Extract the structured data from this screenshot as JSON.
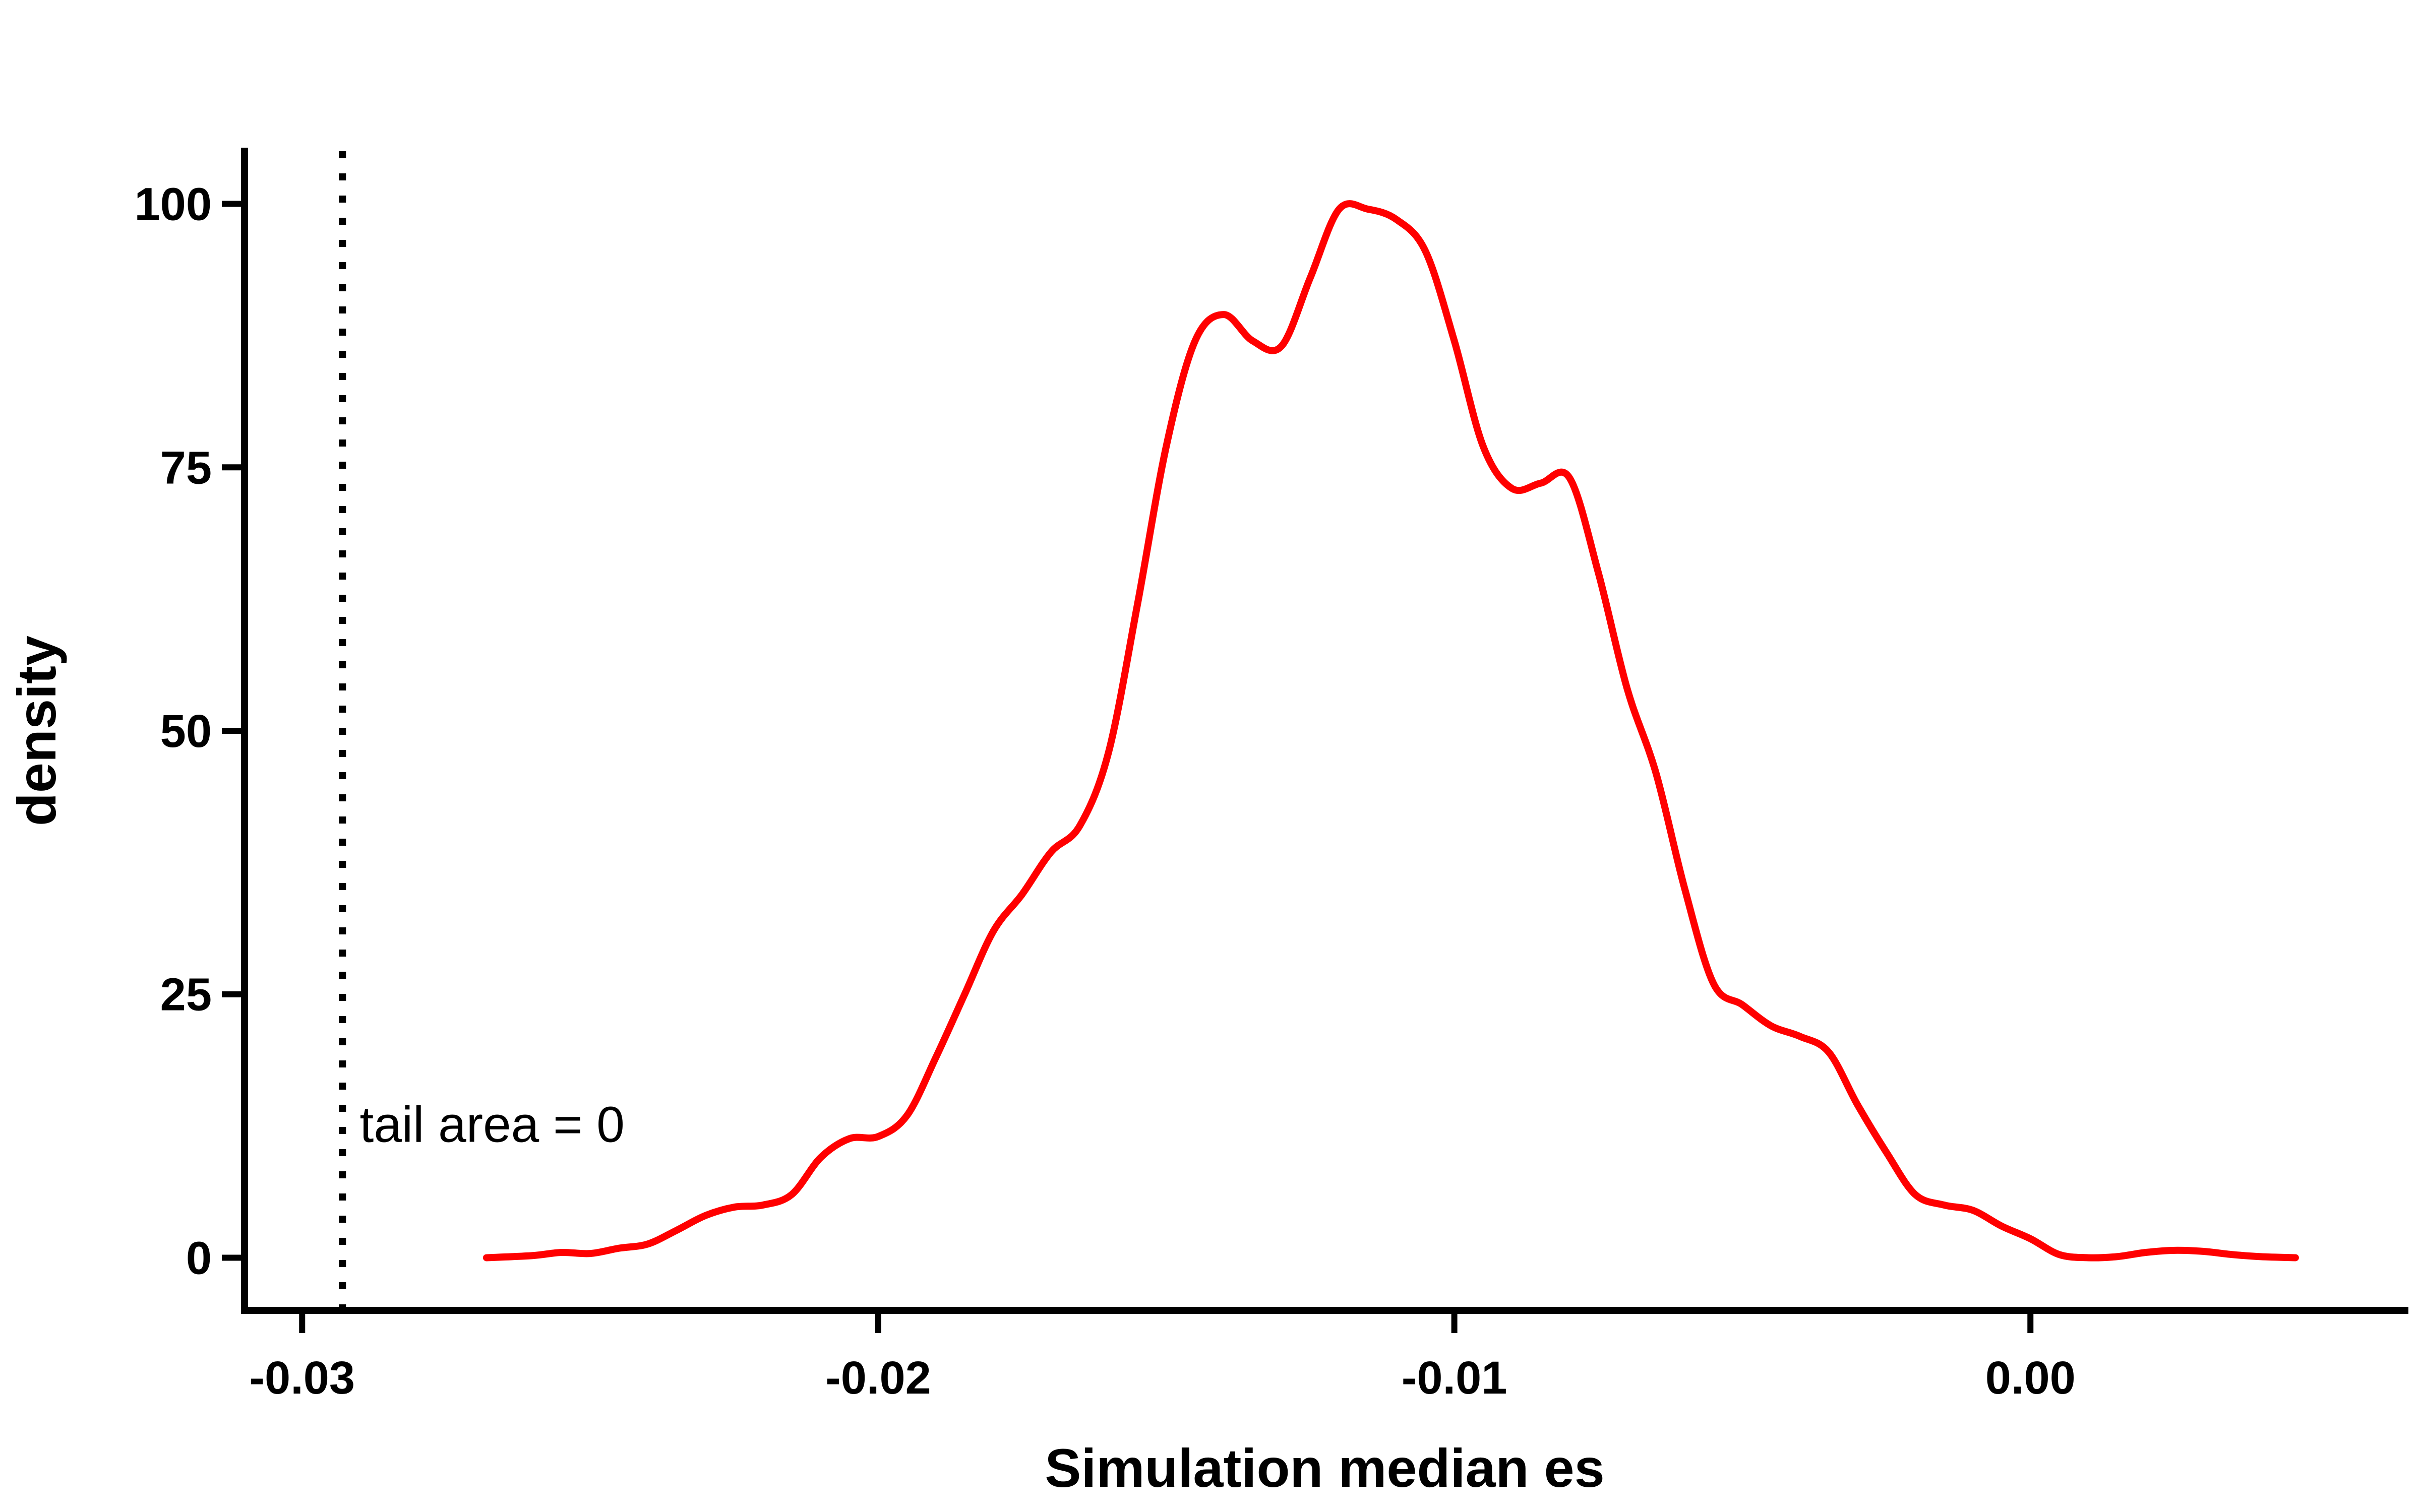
{
  "chart_data": {
    "type": "line",
    "title": "",
    "xlabel": "Simulation median es",
    "ylabel": "density",
    "xlim": [
      -0.031,
      0.0065
    ],
    "ylim": [
      -5,
      105
    ],
    "x_ticks": [
      -0.03,
      -0.02,
      -0.01,
      0.0
    ],
    "x_tick_labels": [
      "-0.03",
      "-0.02",
      "-0.01",
      "0.00"
    ],
    "y_ticks": [
      0,
      25,
      50,
      75,
      100
    ],
    "y_tick_labels": [
      "0",
      "25",
      "50",
      "75",
      "100"
    ],
    "grid": false,
    "legend": "none",
    "reference_line": {
      "x": -0.0293,
      "style": "dotted",
      "color": "#000000"
    },
    "annotation": {
      "text": "tail area =  0",
      "x": -0.029,
      "y": 11
    },
    "series": [
      {
        "color": "#ff0000",
        "points": [
          [
            -0.0268,
            0
          ],
          [
            -0.026,
            0.2
          ],
          [
            -0.0255,
            0.5
          ],
          [
            -0.025,
            0.4
          ],
          [
            -0.0245,
            0.9
          ],
          [
            -0.024,
            1.3
          ],
          [
            -0.0235,
            2.6
          ],
          [
            -0.023,
            4.0
          ],
          [
            -0.0225,
            4.8
          ],
          [
            -0.022,
            5.0
          ],
          [
            -0.0215,
            6.0
          ],
          [
            -0.021,
            9.5
          ],
          [
            -0.0205,
            11.3
          ],
          [
            -0.02,
            11.5
          ],
          [
            -0.0195,
            13.5
          ],
          [
            -0.019,
            19
          ],
          [
            -0.0185,
            25
          ],
          [
            -0.018,
            31
          ],
          [
            -0.0175,
            34.5
          ],
          [
            -0.017,
            38.5
          ],
          [
            -0.0165,
            41
          ],
          [
            -0.016,
            48
          ],
          [
            -0.0155,
            62
          ],
          [
            -0.015,
            77
          ],
          [
            -0.0145,
            87
          ],
          [
            -0.014,
            89.5
          ],
          [
            -0.0135,
            87
          ],
          [
            -0.013,
            86.5
          ],
          [
            -0.0125,
            93
          ],
          [
            -0.012,
            99.5
          ],
          [
            -0.0115,
            99.5
          ],
          [
            -0.011,
            98.5
          ],
          [
            -0.0105,
            95.5
          ],
          [
            -0.01,
            87
          ],
          [
            -0.0095,
            77
          ],
          [
            -0.009,
            73
          ],
          [
            -0.0085,
            73.5
          ],
          [
            -0.008,
            74
          ],
          [
            -0.0075,
            65
          ],
          [
            -0.007,
            54
          ],
          [
            -0.0065,
            46
          ],
          [
            -0.006,
            35
          ],
          [
            -0.0055,
            26
          ],
          [
            -0.005,
            24
          ],
          [
            -0.0045,
            22
          ],
          [
            -0.004,
            21
          ],
          [
            -0.0035,
            19.5
          ],
          [
            -0.003,
            14.5
          ],
          [
            -0.0025,
            10
          ],
          [
            -0.002,
            6
          ],
          [
            -0.0015,
            5
          ],
          [
            -0.001,
            4.5
          ],
          [
            -0.0005,
            3
          ],
          [
            0.0,
            1.8
          ],
          [
            0.0005,
            0.3
          ],
          [
            0.001,
            0.0
          ],
          [
            0.0015,
            0.1
          ],
          [
            0.002,
            0.5
          ],
          [
            0.0025,
            0.7
          ],
          [
            0.003,
            0.6
          ],
          [
            0.0035,
            0.3
          ],
          [
            0.004,
            0.1
          ],
          [
            0.0046,
            0.0
          ]
        ]
      }
    ]
  }
}
